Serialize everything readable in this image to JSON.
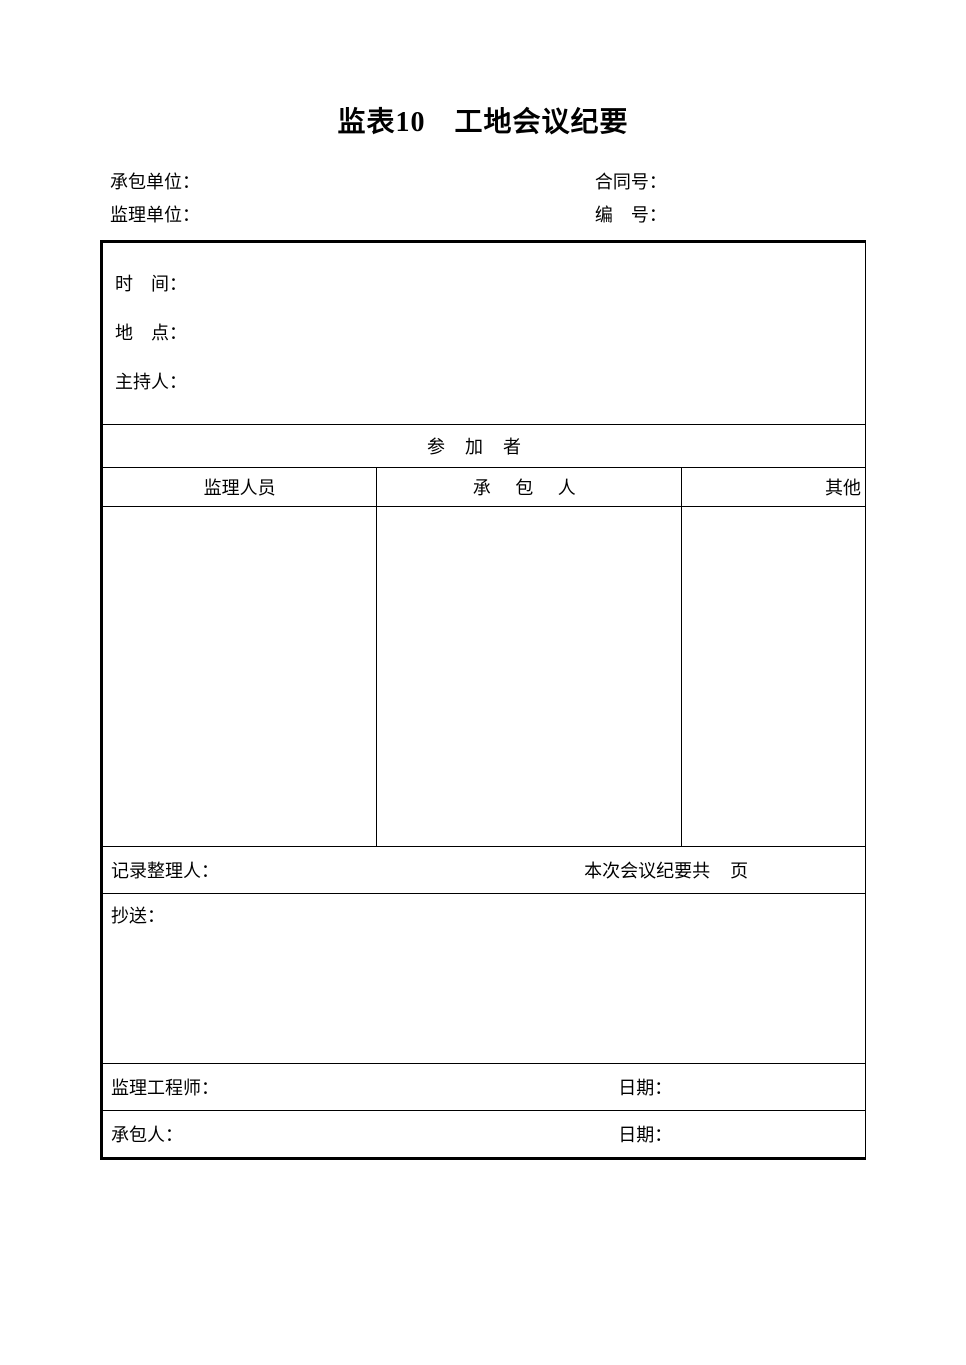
{
  "document": {
    "title": "监表10　工地会议纪要",
    "title_fontsize": 28,
    "body_fontsize": 18,
    "text_color": "#000000",
    "background_color": "#ffffff",
    "border_color": "#000000",
    "outer_border_width": 3,
    "inner_border_width": 1
  },
  "header": {
    "contractor_label": "承包单位：",
    "supervisor_label": "监理单位：",
    "contract_no_label": "合同号：",
    "serial_no_label": "编　号：",
    "contractor_value": "",
    "supervisor_value": "",
    "contract_no_value": "",
    "serial_no_value": ""
  },
  "basic": {
    "time_label": "时　间：",
    "location_label": "地　点：",
    "host_label": "主持人：",
    "time_value": "",
    "location_value": "",
    "host_value": ""
  },
  "participants": {
    "section_title": "参加者",
    "columns": [
      "监理人员",
      "承 包 人",
      "其他"
    ],
    "column_widths_pct": [
      36,
      40,
      24
    ],
    "rows": [
      [
        "",
        "",
        ""
      ]
    ]
  },
  "record": {
    "recorder_label": "记录整理人：",
    "recorder_value": "",
    "pages_prefix": "本次会议纪要共",
    "pages_value": "",
    "pages_suffix": "页"
  },
  "cc": {
    "label": "抄送：",
    "value": ""
  },
  "signatures": {
    "engineer_label": "监理工程师：",
    "engineer_value": "",
    "engineer_date_label": "日期：",
    "engineer_date_value": "",
    "contractor_label": "承包人：",
    "contractor_value": "",
    "contractor_date_label": "日期：",
    "contractor_date_value": ""
  }
}
